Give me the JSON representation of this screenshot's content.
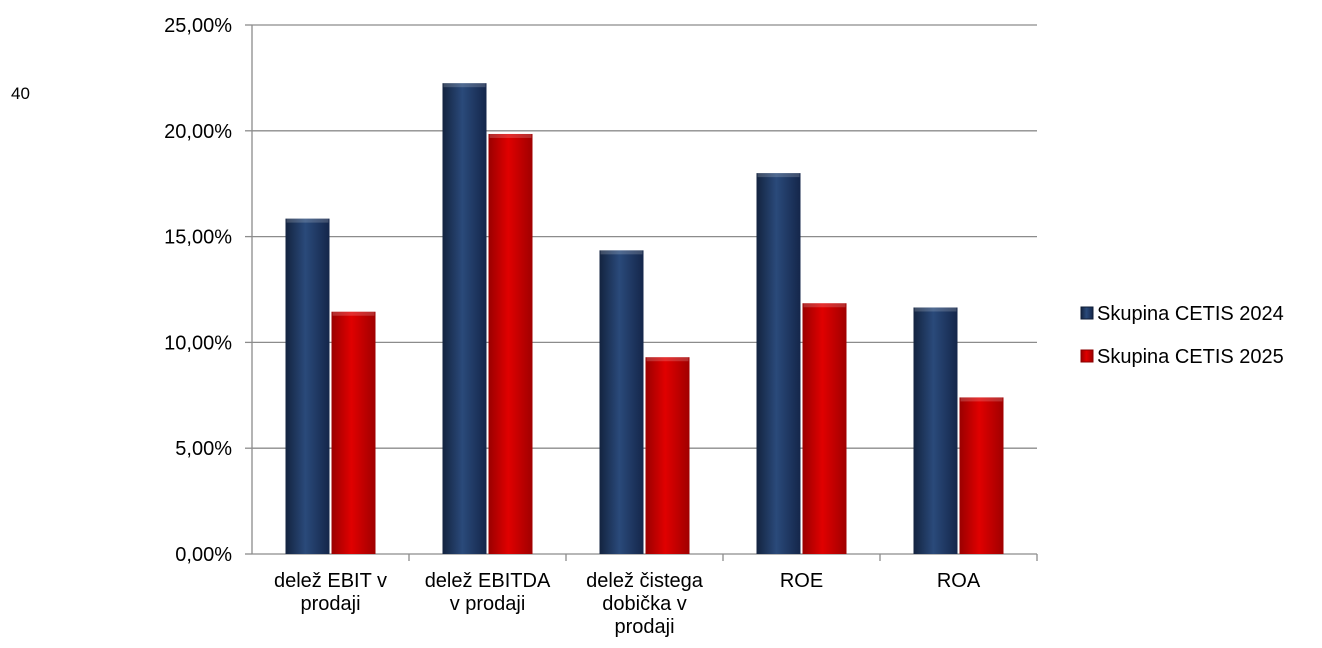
{
  "page": {
    "page_number": "40"
  },
  "chart_data": {
    "type": "bar",
    "title": "",
    "xlabel": "",
    "ylabel": "",
    "ylim": [
      0,
      25
    ],
    "y_ticks": [
      {
        "value": 0,
        "label": "0,00%"
      },
      {
        "value": 5,
        "label": "5,00%"
      },
      {
        "value": 10,
        "label": "10,00%"
      },
      {
        "value": 15,
        "label": "15,00%"
      },
      {
        "value": 20,
        "label": "20,00%"
      },
      {
        "value": 25,
        "label": "25,00%"
      }
    ],
    "grid": true,
    "legend_position": "right",
    "categories": [
      [
        "delež EBIT v",
        "prodaji"
      ],
      [
        "delež EBITDA",
        "v prodaji"
      ],
      [
        "delež čistega",
        "dobička v",
        "prodaji"
      ],
      [
        "ROE"
      ],
      [
        "ROA"
      ]
    ],
    "series": [
      {
        "name": "Skupina CETIS 2024",
        "color": "#1f3864",
        "values": [
          15.85,
          22.25,
          14.35,
          18.0,
          11.65
        ]
      },
      {
        "name": "Skupina CETIS 2025",
        "color": "#cc0000",
        "values": [
          11.45,
          19.85,
          9.3,
          11.85,
          7.4
        ]
      }
    ]
  }
}
